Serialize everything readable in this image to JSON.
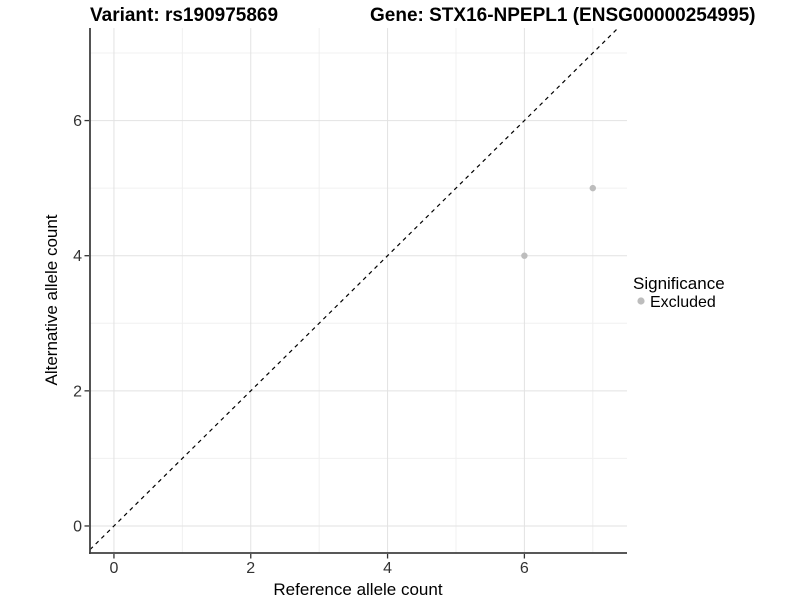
{
  "chart_data": {
    "type": "scatter",
    "title_left": "Variant: rs190975869",
    "title_right": "Gene: STX16-NPEPL1 (ENSG00000254995)",
    "xlabel": "Reference allele count",
    "ylabel": "Alternative allele count",
    "x_ticks": [
      0,
      2,
      4,
      6
    ],
    "y_ticks": [
      0,
      2,
      4,
      6
    ],
    "x_minor_ticks": [
      1,
      3,
      5,
      7
    ],
    "y_minor_ticks": [
      1,
      3,
      5,
      7
    ],
    "xlim": [
      -0.35,
      7.5
    ],
    "ylim": [
      -0.4,
      7.37
    ],
    "grid": "major-and-minor, light gray on white",
    "reference_line": {
      "name": "identity-line",
      "equation": "y = x",
      "style": "dashed",
      "color": "#000000"
    },
    "series": [
      {
        "name": "Excluded",
        "color": "#bdbdbd",
        "points": [
          {
            "x": 6,
            "y": 4
          },
          {
            "x": 7,
            "y": 5
          }
        ]
      }
    ],
    "legend": {
      "title": "Significance",
      "position": "right",
      "items": [
        {
          "label": "Excluded",
          "color": "#bdbdbd"
        }
      ]
    }
  },
  "colors": {
    "background": "#ffffff",
    "axis_line": "#404040",
    "tick_mark": "#333333",
    "grid_major": "#e2e2e2",
    "grid_minor": "#f0f0f0",
    "point": "#bdbdbd",
    "reference_line": "#000000",
    "tick_text": "#333333",
    "title_text": "#000000"
  }
}
